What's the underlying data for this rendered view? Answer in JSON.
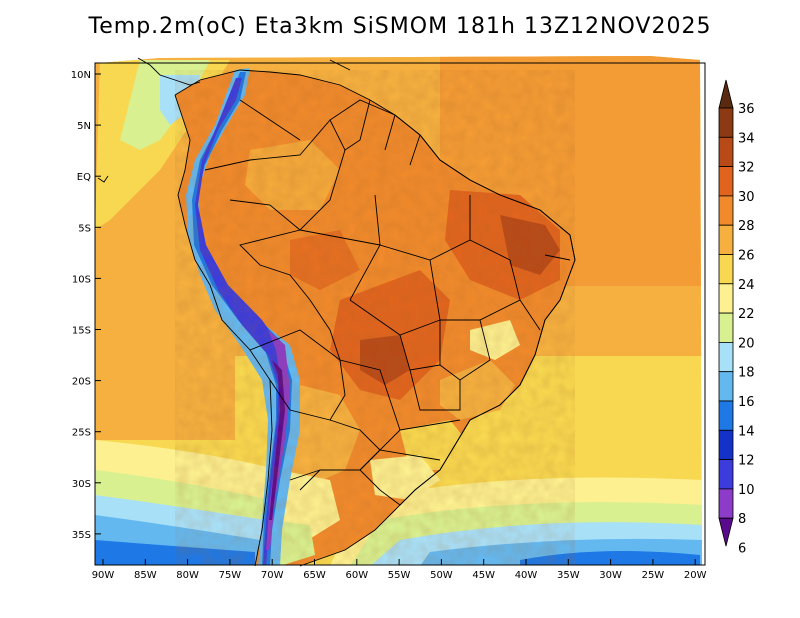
{
  "title": "Temp.2m(oC) Eta3km SiSMOM 181h 13Z12NOV2025",
  "lat_labels": [
    "10N",
    "5N",
    "EQ",
    "5S",
    "10S",
    "15S",
    "20S",
    "25S",
    "30S",
    "35S"
  ],
  "lon_labels": [
    "90W",
    "85W",
    "80W",
    "75W",
    "70W",
    "65W",
    "60W",
    "55W",
    "50W",
    "45W",
    "40W",
    "35W",
    "30W",
    "25W",
    "20W"
  ],
  "colorbar": {
    "labels": [
      "36",
      "34",
      "32",
      "30",
      "28",
      "26",
      "24",
      "22",
      "20",
      "18",
      "16",
      "14",
      "12",
      "10",
      "8",
      "6"
    ],
    "colors": [
      "#5a2a10",
      "#8b3a14",
      "#b84a18",
      "#e0641e",
      "#f08a2c",
      "#f5b040",
      "#f8d850",
      "#fcf090",
      "#d8f090",
      "#a8e0f8",
      "#64b8f0",
      "#1e78e6",
      "#1432c8",
      "#3c3cdc",
      "#8c3cc8",
      "#5a0a8c"
    ]
  }
}
